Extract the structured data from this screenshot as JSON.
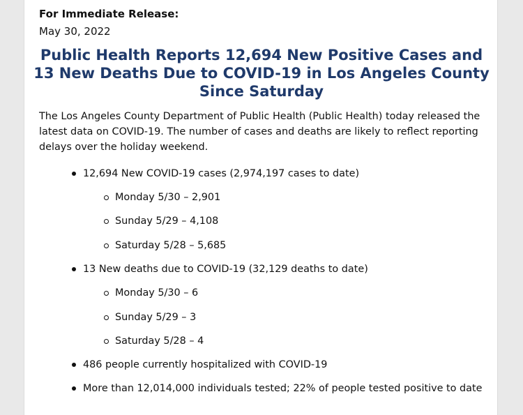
{
  "release": {
    "label": "For Immediate Release:",
    "date": "May 30, 2022"
  },
  "headline": {
    "lines": [
      "Public Health Reports 12,694 New Positive Cases and",
      "13 New Deaths Due to COVID-19 in Los Angeles County",
      "Since Saturday"
    ],
    "color": "#1f3a6b"
  },
  "intro": {
    "lines": [
      "The Los Angeles County Department of Public Health (Public Health) today released the",
      "latest data on COVID-19. The number of cases and deaths are likely to reflect reporting",
      "delays over the holiday weekend."
    ]
  },
  "bullets": {
    "cases": "12,694 New COVID-19 cases (2,974,197 cases to date)",
    "cases_breakdown": [
      "Monday 5/30 – 2,901",
      "Sunday 5/29 – 4,108",
      "Saturday 5/28 – 5,685"
    ],
    "deaths": "13 New deaths due to COVID-19 (32,129 deaths to date)",
    "deaths_breakdown": [
      "Monday 5/30 – 6",
      "Sunday 5/29 – 3",
      "Saturday 5/28 – 4"
    ],
    "hospitalized": "486 people currently hospitalized with COVID-19",
    "tested": "More than 12,014,000 individuals tested; 22% of people tested positive to date"
  }
}
